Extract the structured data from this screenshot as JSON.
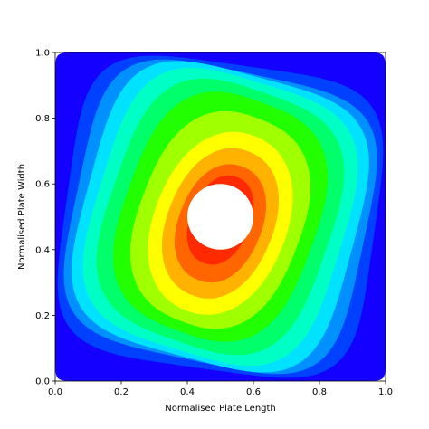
{
  "chart_data": {
    "type": "heatmap",
    "subtype": "filled-contour",
    "title": "",
    "xlabel": "Normalised Plate Length",
    "ylabel": "Normalised Plate Width",
    "xlim": [
      0.0,
      1.0
    ],
    "ylim": [
      0.0,
      1.0
    ],
    "x_ticks": [
      "0.0",
      "0.2",
      "0.4",
      "0.6",
      "0.8",
      "1.0"
    ],
    "y_ticks": [
      "0.0",
      "0.2",
      "0.4",
      "0.6",
      "0.8",
      "1.0"
    ],
    "grid": false,
    "legend": "none",
    "colormap": "jet",
    "hole": {
      "center": [
        0.5,
        0.5
      ],
      "radius": 0.1
    },
    "contour_levels": [
      {
        "level": 0,
        "color": "#1400ff",
        "region": {
          "cx": 0.5,
          "cy": 0.5,
          "rx": 0.5,
          "ry": 0.5,
          "angle": 0
        }
      },
      {
        "level": 1,
        "color": "#0040ff",
        "region": {
          "cx": 0.5,
          "cy": 0.5,
          "rx": 0.468,
          "ry": 0.465,
          "angle": -8
        }
      },
      {
        "level": 2,
        "color": "#0090ff",
        "region": {
          "cx": 0.5,
          "cy": 0.5,
          "rx": 0.44,
          "ry": 0.445,
          "angle": -12
        }
      },
      {
        "level": 3,
        "color": "#00e2ff",
        "region": {
          "cx": 0.5,
          "cy": 0.5,
          "rx": 0.41,
          "ry": 0.44,
          "angle": -15
        }
      },
      {
        "level": 4,
        "color": "#00ffc4",
        "region": {
          "cx": 0.5,
          "cy": 0.5,
          "rx": 0.375,
          "ry": 0.425,
          "angle": -17
        }
      },
      {
        "level": 5,
        "color": "#00ff6b",
        "region": {
          "cx": 0.5,
          "cy": 0.5,
          "rx": 0.335,
          "ry": 0.4,
          "angle": -19
        }
      },
      {
        "level": 6,
        "color": "#22ff00",
        "region": {
          "cx": 0.5,
          "cy": 0.5,
          "rx": 0.29,
          "ry": 0.37,
          "angle": -20
        }
      },
      {
        "level": 7,
        "color": "#a0ff00",
        "region": {
          "cx": 0.5,
          "cy": 0.49,
          "rx": 0.245,
          "ry": 0.33,
          "angle": -21
        }
      },
      {
        "level": 8,
        "color": "#ffff00",
        "region": {
          "cx": 0.5,
          "cy": 0.48,
          "rx": 0.2,
          "ry": 0.285,
          "angle": -22
        }
      },
      {
        "level": 9,
        "color": "#ffb200",
        "region": {
          "cx": 0.5,
          "cy": 0.48,
          "rx": 0.16,
          "ry": 0.235,
          "angle": -22
        }
      },
      {
        "level": 10,
        "color": "#ff6600",
        "region": {
          "cx": 0.5,
          "cy": 0.48,
          "rx": 0.125,
          "ry": 0.185,
          "angle": -22
        }
      },
      {
        "level": 11,
        "color": "#ff2a00",
        "region": {
          "cx": 0.5,
          "cy": 0.49,
          "rx": 0.09,
          "ry": 0.14,
          "angle": -22
        }
      }
    ]
  }
}
